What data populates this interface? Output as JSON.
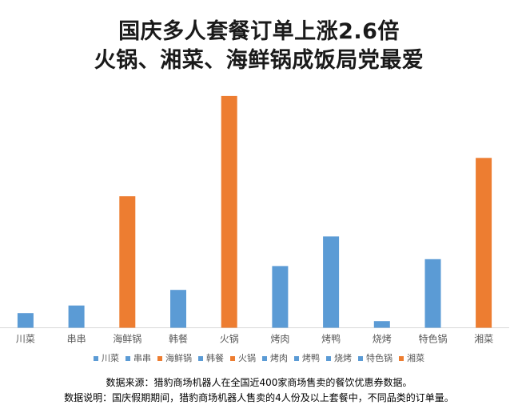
{
  "title": {
    "line1": "国庆多人套餐订单上涨2.6倍",
    "line2": "火锅、湘菜、海鲜锅成饭局党最爱"
  },
  "colors": {
    "blue": "#5b9bd5",
    "orange": "#ed7d31",
    "axis": "#d9d9d9",
    "tick_text": "#595959"
  },
  "chart_data": {
    "type": "bar",
    "title": "国庆多人套餐订单上涨2.6倍 火锅、湘菜、海鲜锅成饭局党最爱",
    "categories": [
      "川菜",
      "串串",
      "海鲜锅",
      "韩餐",
      "火锅",
      "烤肉",
      "烤鸭",
      "烧烤",
      "特色锅",
      "湘菜"
    ],
    "values": [
      6.2,
      9.4,
      55.6,
      16.0,
      98.0,
      26.1,
      38.6,
      2.8,
      29.0,
      71.8
    ],
    "bar_colors": [
      "#5b9bd5",
      "#5b9bd5",
      "#ed7d31",
      "#5b9bd5",
      "#ed7d31",
      "#5b9bd5",
      "#5b9bd5",
      "#5b9bd5",
      "#5b9bd5",
      "#ed7d31"
    ],
    "ylim": [
      0,
      100
    ],
    "xlabel": "",
    "ylabel": "",
    "grid": false,
    "legend": {
      "position": "bottom",
      "entries": [
        "川菜",
        "串串",
        "海鲜锅",
        "韩餐",
        "火锅",
        "烤肉",
        "烤鸭",
        "烧烤",
        "特色锅",
        "湘菜"
      ]
    }
  },
  "source": {
    "line1": "数据来源：猎豹商场机器人在全国近400家商场售卖的餐饮优惠券数据。",
    "line2": "数据说明：国庆假期期间，猎豹商场机器人售卖的4人份及以上套餐中，不同品类的订单量。"
  }
}
